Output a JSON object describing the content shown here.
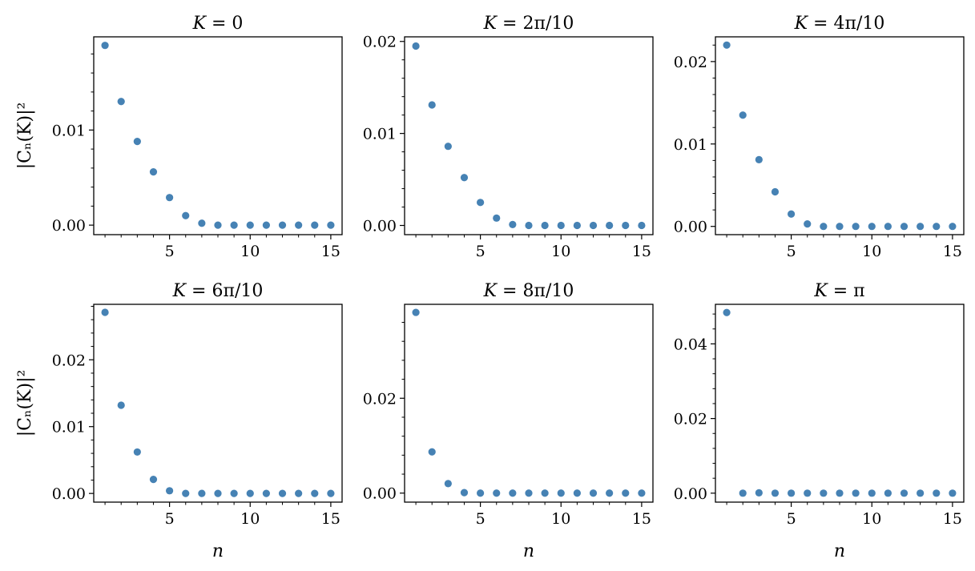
{
  "figure": {
    "xlabel": "n",
    "ylabel": "|Cₙ(K)|²",
    "marker_color": "#4682b4"
  },
  "chart_data": [
    {
      "type": "scatter",
      "title": "K = 0",
      "x": [
        1,
        2,
        3,
        4,
        5,
        6,
        7,
        8,
        9,
        10,
        11,
        12,
        13,
        14,
        15
      ],
      "y": [
        0.0189,
        0.013,
        0.0088,
        0.0056,
        0.0029,
        0.001,
        0.0002,
        0.0,
        0.0,
        0.0,
        0.0,
        0.0,
        0.0,
        0.0,
        0.0
      ],
      "xlim": [
        0.3,
        15.7
      ],
      "ylim": [
        -0.001,
        0.0198
      ],
      "xticks": [
        5,
        10,
        15
      ],
      "yticks": [
        0.0,
        0.01
      ],
      "yticklabels": [
        "0.00",
        "0.01"
      ],
      "ylabel": "|Cₙ(K)|²",
      "xlabel": ""
    },
    {
      "type": "scatter",
      "title": "K = 2π/10",
      "x": [
        1,
        2,
        3,
        4,
        5,
        6,
        7,
        8,
        9,
        10,
        11,
        12,
        13,
        14,
        15
      ],
      "y": [
        0.0195,
        0.0131,
        0.0086,
        0.0052,
        0.0025,
        0.0008,
        0.0001,
        0.0,
        0.0,
        0.0,
        0.0,
        0.0,
        0.0,
        0.0,
        0.0
      ],
      "xlim": [
        0.3,
        15.7
      ],
      "ylim": [
        -0.001,
        0.0205
      ],
      "xticks": [
        5,
        10,
        15
      ],
      "yticks": [
        0.0,
        0.01,
        0.02
      ],
      "yticklabels": [
        "0.00",
        "0.01",
        "0.02"
      ],
      "ylabel": "",
      "xlabel": ""
    },
    {
      "type": "scatter",
      "title": "K = 4π/10",
      "x": [
        1,
        2,
        3,
        4,
        5,
        6,
        7,
        8,
        9,
        10,
        11,
        12,
        13,
        14,
        15
      ],
      "y": [
        0.022,
        0.0135,
        0.0081,
        0.0042,
        0.0015,
        0.0003,
        0.0,
        0.0,
        0.0,
        0.0,
        0.0,
        0.0,
        0.0,
        0.0,
        0.0
      ],
      "xlim": [
        0.3,
        15.7
      ],
      "ylim": [
        -0.001,
        0.023
      ],
      "xticks": [
        5,
        10,
        15
      ],
      "yticks": [
        0.0,
        0.01,
        0.02
      ],
      "yticklabels": [
        "0.00",
        "0.01",
        "0.02"
      ],
      "ylabel": "",
      "xlabel": ""
    },
    {
      "type": "scatter",
      "title": "K = 6π/10",
      "x": [
        1,
        2,
        3,
        4,
        5,
        6,
        7,
        8,
        9,
        10,
        11,
        12,
        13,
        14,
        15
      ],
      "y": [
        0.0271,
        0.0132,
        0.0062,
        0.0021,
        0.0004,
        0.0,
        0.0,
        0.0,
        0.0,
        0.0,
        0.0,
        0.0,
        0.0,
        0.0,
        0.0
      ],
      "xlim": [
        0.3,
        15.7
      ],
      "ylim": [
        -0.0013,
        0.0283
      ],
      "xticks": [
        5,
        10,
        15
      ],
      "yticks": [
        0.0,
        0.01,
        0.02
      ],
      "yticklabels": [
        "0.00",
        "0.01",
        "0.02"
      ],
      "ylabel": "|Cₙ(K)|²",
      "xlabel": "n"
    },
    {
      "type": "scatter",
      "title": "K = 8π/10",
      "x": [
        1,
        2,
        3,
        4,
        5,
        6,
        7,
        8,
        9,
        10,
        11,
        12,
        13,
        14,
        15
      ],
      "y": [
        0.0381,
        0.0087,
        0.002,
        0.0001,
        0.0,
        0.0,
        0.0,
        0.0,
        0.0,
        0.0,
        0.0,
        0.0,
        0.0,
        0.0,
        0.0
      ],
      "xlim": [
        0.3,
        15.7
      ],
      "ylim": [
        -0.0019,
        0.0398
      ],
      "xticks": [
        5,
        10,
        15
      ],
      "yticks": [
        0.0,
        0.02
      ],
      "yticklabels": [
        "0.00",
        "0.02"
      ],
      "ylabel": "",
      "xlabel": "n"
    },
    {
      "type": "scatter",
      "title": "K = π",
      "x": [
        1,
        2,
        3,
        4,
        5,
        6,
        7,
        8,
        9,
        10,
        11,
        12,
        13,
        14,
        15
      ],
      "y": [
        0.0484,
        0.0,
        0.0001,
        0.0,
        0.0,
        0.0,
        0.0,
        0.0,
        0.0,
        0.0,
        0.0,
        0.0,
        0.0,
        0.0,
        0.0
      ],
      "xlim": [
        0.3,
        15.7
      ],
      "ylim": [
        -0.0024,
        0.0506
      ],
      "xticks": [
        5,
        10,
        15
      ],
      "yticks": [
        0.0,
        0.02,
        0.04
      ],
      "yticklabels": [
        "0.00",
        "0.02",
        "0.04"
      ],
      "ylabel": "",
      "xlabel": "n"
    }
  ]
}
